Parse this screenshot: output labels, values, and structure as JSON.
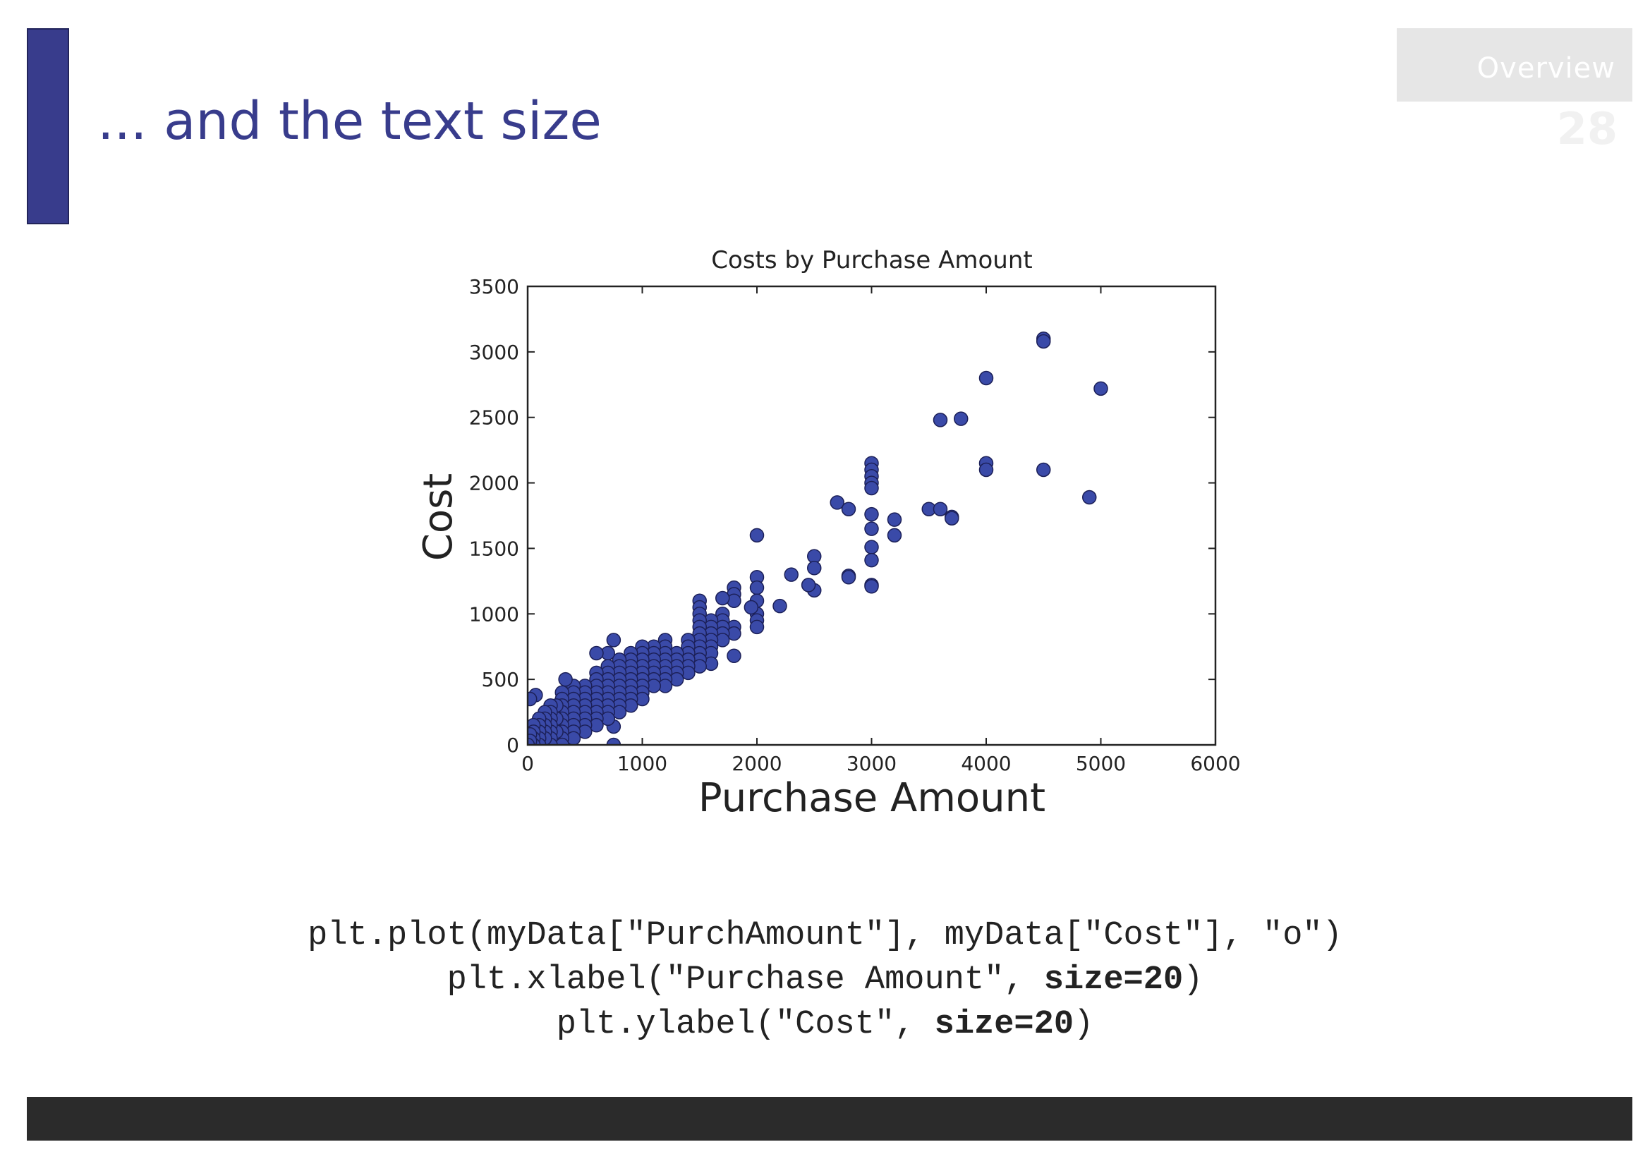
{
  "slide": {
    "title": "... and the text size",
    "section_tab": "Overview",
    "page_number": "28",
    "colors": {
      "accent": "#383c8c",
      "tab_bg": "#e6e6e6",
      "footer": "#2b2b2b"
    }
  },
  "code": {
    "line1": "plt.plot(myData[\"PurchAmount\"], myData[\"Cost\"], \"o\")",
    "line2_prefix": "plt.xlabel(\"Purchase Amount\", ",
    "line2_bold": "size=20",
    "line2_suffix": ")",
    "line3_prefix": "plt.ylabel(\"Cost\", ",
    "line3_bold": "size=20",
    "line3_suffix": ")"
  },
  "chart_data": {
    "type": "scatter",
    "title": "Costs by Purchase Amount",
    "xlabel": "Purchase Amount",
    "ylabel": "Cost",
    "xlim": [
      0,
      6000
    ],
    "ylim": [
      0,
      3500
    ],
    "xticks": [
      0,
      1000,
      2000,
      3000,
      4000,
      5000,
      6000
    ],
    "yticks": [
      0,
      500,
      1000,
      1500,
      2000,
      2500,
      3000,
      3500
    ],
    "grid": false,
    "marker_color": "#3a4aa8",
    "marker_edge": "#1c2058",
    "points": [
      [
        4500,
        3100
      ],
      [
        4500,
        3080
      ],
      [
        5000,
        2720
      ],
      [
        4000,
        2800
      ],
      [
        3600,
        2480
      ],
      [
        3780,
        2490
      ],
      [
        4000,
        2150
      ],
      [
        4000,
        2100
      ],
      [
        4500,
        2100
      ],
      [
        4900,
        1890
      ],
      [
        3500,
        1800
      ],
      [
        3600,
        1800
      ],
      [
        3700,
        1740
      ],
      [
        3700,
        1730
      ],
      [
        3000,
        2150
      ],
      [
        3000,
        2100
      ],
      [
        3000,
        2050
      ],
      [
        3000,
        2000
      ],
      [
        3000,
        1960
      ],
      [
        3000,
        1760
      ],
      [
        3000,
        1650
      ],
      [
        3000,
        1510
      ],
      [
        3000,
        1410
      ],
      [
        3000,
        1220
      ],
      [
        3000,
        1210
      ],
      [
        3200,
        1720
      ],
      [
        3200,
        1600
      ],
      [
        2700,
        1850
      ],
      [
        2800,
        1800
      ],
      [
        2800,
        1290
      ],
      [
        2800,
        1280
      ],
      [
        2500,
        1440
      ],
      [
        2500,
        1350
      ],
      [
        2500,
        1180
      ],
      [
        2450,
        1220
      ],
      [
        2300,
        1300
      ],
      [
        2200,
        1060
      ],
      [
        2000,
        1600
      ],
      [
        2000,
        1280
      ],
      [
        2000,
        1200
      ],
      [
        2000,
        1100
      ],
      [
        2000,
        1000
      ],
      [
        2000,
        950
      ],
      [
        2000,
        900
      ],
      [
        1950,
        1050
      ],
      [
        1800,
        1200
      ],
      [
        1800,
        1150
      ],
      [
        1800,
        1100
      ],
      [
        1800,
        900
      ],
      [
        1800,
        850
      ],
      [
        1800,
        680
      ],
      [
        1700,
        1120
      ],
      [
        1700,
        1000
      ],
      [
        1700,
        950
      ],
      [
        1700,
        900
      ],
      [
        1700,
        850
      ],
      [
        1700,
        800
      ],
      [
        1600,
        950
      ],
      [
        1600,
        900
      ],
      [
        1600,
        850
      ],
      [
        1600,
        800
      ],
      [
        1600,
        750
      ],
      [
        1600,
        700
      ],
      [
        1600,
        620
      ],
      [
        1500,
        1100
      ],
      [
        1500,
        1050
      ],
      [
        1500,
        1000
      ],
      [
        1500,
        950
      ],
      [
        1500,
        900
      ],
      [
        1500,
        850
      ],
      [
        1500,
        800
      ],
      [
        1500,
        750
      ],
      [
        1500,
        700
      ],
      [
        1500,
        650
      ],
      [
        1500,
        600
      ],
      [
        1400,
        800
      ],
      [
        1400,
        750
      ],
      [
        1400,
        700
      ],
      [
        1400,
        650
      ],
      [
        1400,
        600
      ],
      [
        1400,
        550
      ],
      [
        1300,
        700
      ],
      [
        1300,
        650
      ],
      [
        1300,
        600
      ],
      [
        1300,
        550
      ],
      [
        1300,
        500
      ],
      [
        1200,
        800
      ],
      [
        1200,
        750
      ],
      [
        1200,
        700
      ],
      [
        1200,
        650
      ],
      [
        1200,
        600
      ],
      [
        1200,
        550
      ],
      [
        1200,
        500
      ],
      [
        1200,
        450
      ],
      [
        1100,
        750
      ],
      [
        1100,
        700
      ],
      [
        1100,
        650
      ],
      [
        1100,
        600
      ],
      [
        1100,
        550
      ],
      [
        1100,
        500
      ],
      [
        1100,
        450
      ],
      [
        1000,
        750
      ],
      [
        1000,
        700
      ],
      [
        1000,
        650
      ],
      [
        1000,
        600
      ],
      [
        1000,
        550
      ],
      [
        1000,
        500
      ],
      [
        1000,
        450
      ],
      [
        1000,
        400
      ],
      [
        1000,
        350
      ],
      [
        900,
        700
      ],
      [
        900,
        650
      ],
      [
        900,
        600
      ],
      [
        900,
        550
      ],
      [
        900,
        500
      ],
      [
        900,
        450
      ],
      [
        900,
        400
      ],
      [
        900,
        350
      ],
      [
        900,
        300
      ],
      [
        800,
        650
      ],
      [
        800,
        600
      ],
      [
        800,
        550
      ],
      [
        800,
        500
      ],
      [
        800,
        450
      ],
      [
        800,
        400
      ],
      [
        800,
        350
      ],
      [
        800,
        300
      ],
      [
        800,
        250
      ],
      [
        750,
        800
      ],
      [
        750,
        140
      ],
      [
        750,
        0
      ],
      [
        700,
        700
      ],
      [
        700,
        600
      ],
      [
        700,
        550
      ],
      [
        700,
        500
      ],
      [
        700,
        450
      ],
      [
        700,
        400
      ],
      [
        700,
        350
      ],
      [
        700,
        300
      ],
      [
        700,
        250
      ],
      [
        700,
        200
      ],
      [
        600,
        700
      ],
      [
        600,
        550
      ],
      [
        600,
        500
      ],
      [
        600,
        450
      ],
      [
        600,
        400
      ],
      [
        600,
        350
      ],
      [
        600,
        300
      ],
      [
        600,
        250
      ],
      [
        600,
        200
      ],
      [
        600,
        150
      ],
      [
        500,
        450
      ],
      [
        500,
        400
      ],
      [
        500,
        350
      ],
      [
        500,
        300
      ],
      [
        500,
        250
      ],
      [
        500,
        200
      ],
      [
        500,
        150
      ],
      [
        500,
        100
      ],
      [
        400,
        450
      ],
      [
        400,
        400
      ],
      [
        400,
        350
      ],
      [
        400,
        300
      ],
      [
        400,
        250
      ],
      [
        400,
        200
      ],
      [
        400,
        150
      ],
      [
        400,
        100
      ],
      [
        400,
        50
      ],
      [
        330,
        500
      ],
      [
        300,
        400
      ],
      [
        300,
        350
      ],
      [
        300,
        300
      ],
      [
        300,
        250
      ],
      [
        300,
        200
      ],
      [
        300,
        150
      ],
      [
        300,
        100
      ],
      [
        300,
        50
      ],
      [
        300,
        0
      ],
      [
        250,
        300
      ],
      [
        250,
        200
      ],
      [
        250,
        100
      ],
      [
        200,
        300
      ],
      [
        200,
        250
      ],
      [
        200,
        200
      ],
      [
        200,
        150
      ],
      [
        200,
        100
      ],
      [
        200,
        50
      ],
      [
        200,
        0
      ],
      [
        150,
        250
      ],
      [
        150,
        200
      ],
      [
        150,
        150
      ],
      [
        150,
        100
      ],
      [
        150,
        50
      ],
      [
        100,
        200
      ],
      [
        100,
        150
      ],
      [
        100,
        100
      ],
      [
        100,
        50
      ],
      [
        100,
        0
      ],
      [
        70,
        380
      ],
      [
        50,
        150
      ],
      [
        50,
        100
      ],
      [
        50,
        50
      ],
      [
        50,
        0
      ],
      [
        20,
        350
      ],
      [
        20,
        80
      ],
      [
        20,
        30
      ],
      [
        0,
        0
      ]
    ]
  }
}
